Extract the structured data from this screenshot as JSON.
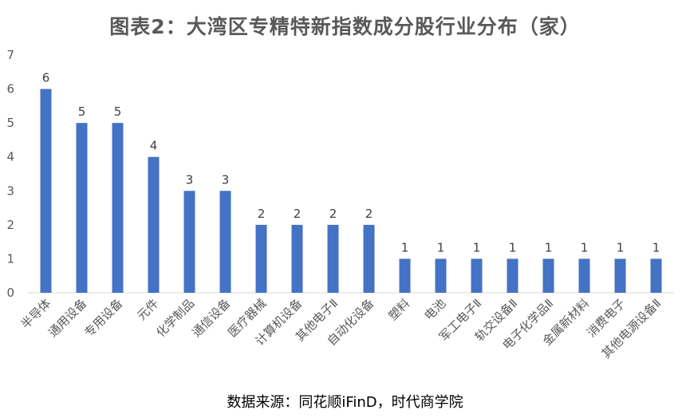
{
  "title": "图表2：大湾区专精特新指数成分股行业分布（家）",
  "source": "数据来源：同花顺iFinD，时代商学院",
  "colors": {
    "bar": "#4472C4",
    "axis": "#D9D9D9",
    "text": "#595959"
  },
  "chart_data": {
    "type": "bar",
    "title": "图表2：大湾区专精特新指数成分股行业分布（家）",
    "categories": [
      "半导体",
      "通用设备",
      "专用设备",
      "元件",
      "化学制品",
      "通信设备",
      "医疗器械",
      "计算机设备",
      "其他电子Ⅱ",
      "自动化设备",
      "塑料",
      "电池",
      "军工电子Ⅱ",
      "轨交设备Ⅱ",
      "电子化学品Ⅱ",
      "金属新材料",
      "消费电子",
      "其他电源设备Ⅱ"
    ],
    "values": [
      6,
      5,
      5,
      4,
      3,
      3,
      2,
      2,
      2,
      2,
      1,
      1,
      1,
      1,
      1,
      1,
      1,
      1
    ],
    "ylim": [
      0,
      7
    ],
    "yticks": [
      0,
      1,
      2,
      3,
      4,
      5,
      6,
      7
    ],
    "data_labels": true,
    "grid": false,
    "legend": "none"
  }
}
